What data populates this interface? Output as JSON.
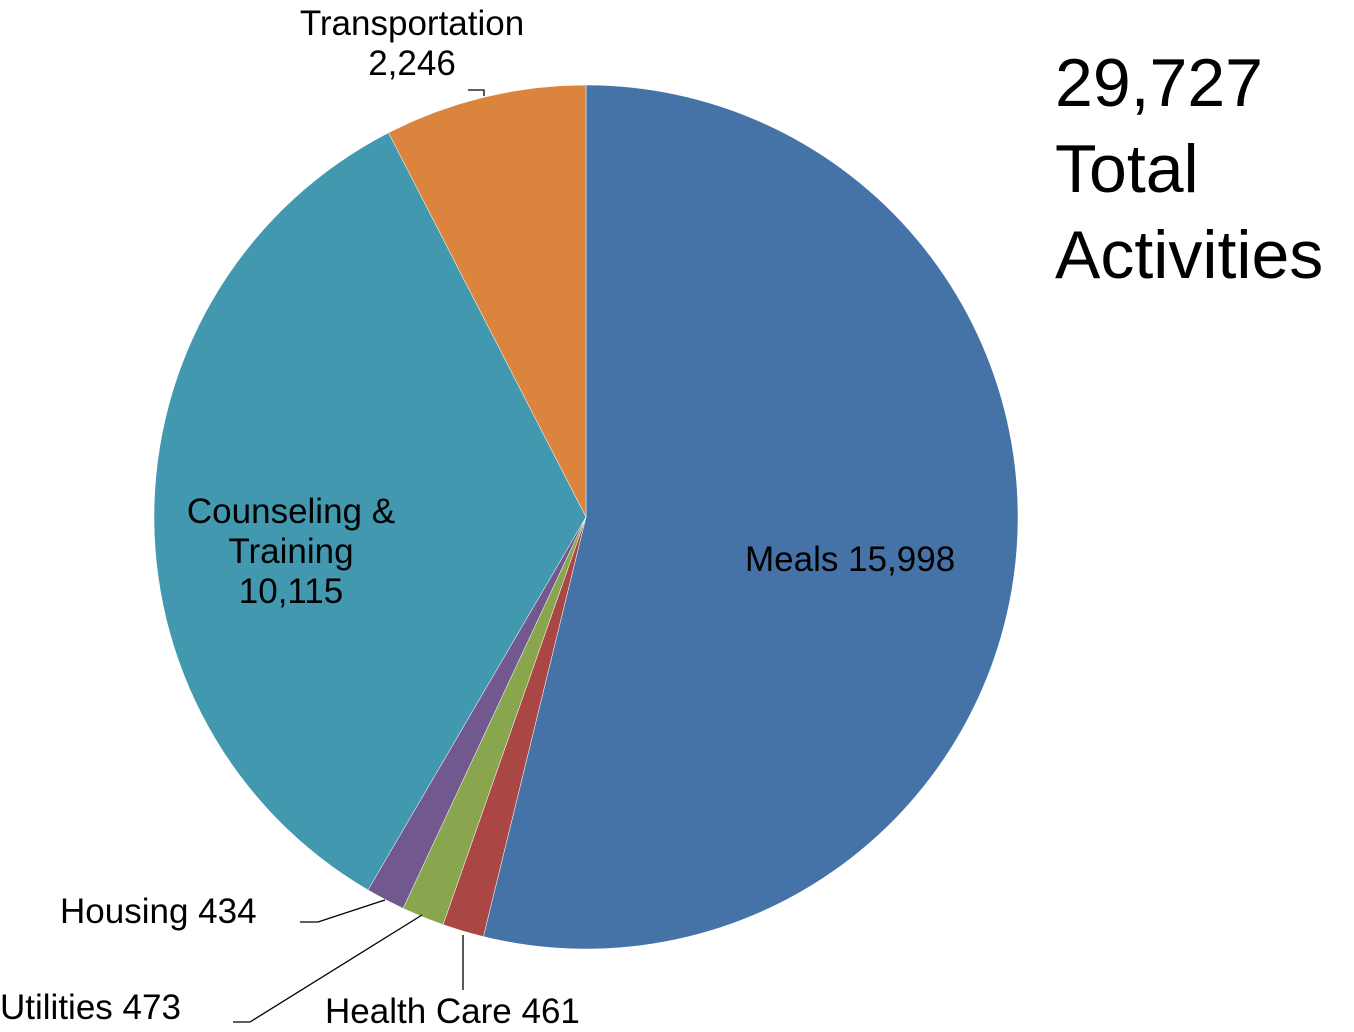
{
  "chart_data": {
    "type": "pie",
    "categories": [
      "Meals",
      "Health Care",
      "Utilities",
      "Housing",
      "Counseling & Training",
      "Transportation"
    ],
    "values": [
      15998,
      461,
      473,
      434,
      10115,
      2246
    ],
    "value_labels": [
      "15,998",
      "461",
      "473",
      "434",
      "10,115",
      "2,246"
    ],
    "colors": [
      "#4572a7",
      "#aa4643",
      "#89a54e",
      "#71588f",
      "#4198af",
      "#db843d"
    ],
    "annotation": [
      "29,727",
      "Total",
      "Activities"
    ]
  }
}
